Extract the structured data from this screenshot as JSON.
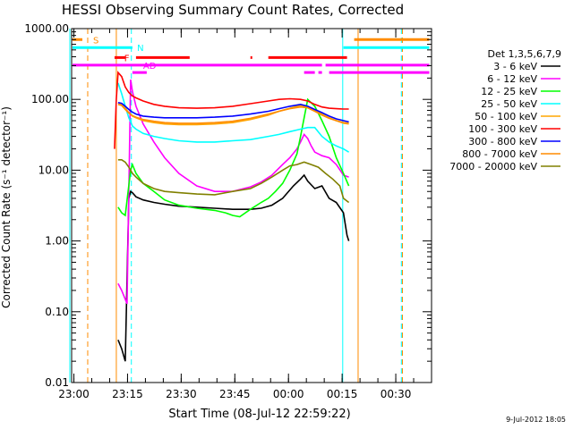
{
  "chart_data": {
    "type": "line",
    "title": "HESSI Observing Summary Count Rates, Corrected",
    "xlabel": "Start Time (08-Jul-12 22:59:22)",
    "ylabel": "Corrected Count Rate (s⁻¹ detector⁻¹)",
    "y_scale": "log",
    "ylim": [
      0.01,
      1000
    ],
    "xlim": [
      "22:59:22",
      "00:40:00"
    ],
    "y_ticks": [
      "1000.00",
      "100.00",
      "10.00",
      "1.00",
      "0.10",
      "0.01"
    ],
    "x_ticks": [
      "23:00",
      "23:15",
      "23:30",
      "23:45",
      "00:00",
      "00:15",
      "00:30"
    ],
    "legend_title": "Det 1,3,5,6,7,9",
    "legend_position": "right",
    "series": [
      {
        "name": "3 - 6 keV",
        "color": "#000000",
        "x": [
          13.0,
          14.0,
          15.0,
          16.0,
          16.5,
          17.0,
          18.0,
          20.0,
          23.0,
          26.0,
          30.0,
          35.0,
          40.0,
          45.0,
          50.0,
          53.0,
          56.0,
          59.0,
          62.0,
          64.0,
          65.0,
          66.0,
          68.0,
          70.0,
          72.0,
          74.0,
          76.0,
          77.0,
          77.5
        ],
        "y": [
          0.04,
          0.03,
          0.02,
          4.0,
          5.0,
          4.8,
          4.2,
          3.8,
          3.5,
          3.3,
          3.1,
          3.0,
          2.9,
          2.8,
          2.8,
          2.9,
          3.2,
          4.0,
          6.0,
          7.5,
          8.5,
          7.0,
          5.5,
          6.0,
          4.0,
          3.5,
          2.5,
          1.2,
          1.0
        ]
      },
      {
        "name": "6 - 12 keV",
        "color": "#ff00ff",
        "x": [
          13.0,
          14.0,
          15.5,
          16.5,
          17.0,
          18.0,
          20.0,
          23.0,
          26.0,
          30.0,
          35.0,
          40.0,
          45.0,
          50.0,
          53.0,
          56.0,
          59.0,
          61.0,
          63.0,
          64.0,
          65.0,
          66.0,
          67.0,
          68.0,
          70.0,
          72.0,
          74.0,
          76.0,
          77.5
        ],
        "y": [
          0.25,
          0.2,
          0.13,
          190,
          130,
          80,
          45,
          25,
          15,
          9.0,
          6.0,
          5.0,
          5.0,
          5.8,
          6.8,
          8.5,
          12,
          15,
          20,
          25,
          32,
          28,
          22,
          18,
          16,
          15,
          12,
          8.5,
          8.0
        ]
      },
      {
        "name": "12 - 25 keV",
        "color": "#00ff00",
        "x": [
          13.0,
          14.0,
          15.0,
          16.5,
          17.0,
          18.0,
          20.0,
          23.0,
          26.0,
          30.0,
          35.0,
          40.0,
          43.0,
          45.0,
          47.0,
          50.0,
          53.0,
          55.0,
          57.0,
          59.0,
          61.0,
          63.0,
          64.0,
          65.0,
          66.0,
          68.0,
          70.0,
          72.0,
          74.0,
          76.0,
          77.5
        ],
        "y": [
          3.0,
          2.5,
          2.3,
          10,
          12,
          9.0,
          6.5,
          5.0,
          3.8,
          3.2,
          2.9,
          2.7,
          2.5,
          2.3,
          2.2,
          2.8,
          3.5,
          4.0,
          5.0,
          6.5,
          10,
          17,
          30,
          55,
          100,
          80,
          50,
          30,
          15,
          9.0,
          6.0
        ]
      },
      {
        "name": "25 - 50 keV",
        "color": "#00ffff",
        "x": [
          13.0,
          14.0,
          15.0,
          16.0,
          17.0,
          18.0,
          20.0,
          23.0,
          26.0,
          30.0,
          35.0,
          40.0,
          45.0,
          50.0,
          55.0,
          58.0,
          61.0,
          64.0,
          66.0,
          68.0,
          70.0,
          72.0,
          74.0,
          76.0,
          77.5
        ],
        "y": [
          170,
          120,
          80,
          55,
          42,
          38,
          33,
          30,
          28,
          26,
          25,
          25,
          26,
          27,
          30,
          32,
          35,
          38,
          40,
          40,
          30,
          25,
          22,
          20,
          18
        ]
      },
      {
        "name": "50 - 100 keV",
        "color": "#ffa500",
        "x": [
          13.0,
          14.0,
          15.0,
          16.0,
          17.0,
          18.0,
          20.0,
          23.0,
          26.0,
          30.0,
          35.0,
          40.0,
          45.0,
          50.0,
          55.0,
          58.0,
          61.0,
          64.0,
          66.0,
          68.0,
          70.0,
          72.0,
          74.0,
          76.0,
          77.5
        ],
        "y": [
          90,
          85,
          75,
          65,
          58,
          55,
          50,
          47,
          45,
          44,
          44,
          45,
          47,
          52,
          60,
          68,
          75,
          82,
          78,
          70,
          62,
          55,
          50,
          46,
          45
        ]
      },
      {
        "name": "100 - 300 keV",
        "color": "#ff0000",
        "x": [
          12.0,
          12.5,
          13.0,
          14.0,
          15.0,
          16.0,
          17.0,
          18.0,
          20.0,
          23.0,
          26.0,
          30.0,
          35.0,
          40.0,
          45.0,
          50.0,
          55.0,
          58.0,
          61.0,
          64.0,
          66.0,
          68.0,
          70.0,
          72.0,
          74.0,
          76.0,
          77.5
        ],
        "y": [
          20,
          100,
          240,
          210,
          150,
          125,
          112,
          105,
          95,
          85,
          80,
          76,
          75,
          76,
          80,
          87,
          95,
          100,
          102,
          100,
          95,
          85,
          78,
          75,
          74,
          73,
          73
        ]
      },
      {
        "name": "300 - 800 keV",
        "color": "#0000ff",
        "x": [
          13.0,
          14.0,
          15.0,
          16.0,
          17.0,
          18.0,
          20.0,
          23.0,
          26.0,
          30.0,
          35.0,
          40.0,
          45.0,
          50.0,
          55.0,
          58.0,
          61.0,
          64.0,
          66.0,
          68.0,
          70.0,
          72.0,
          74.0,
          76.0,
          77.5
        ],
        "y": [
          90,
          88,
          80,
          72,
          66,
          62,
          58,
          56,
          55,
          55,
          55,
          56,
          58,
          62,
          68,
          74,
          80,
          85,
          80,
          72,
          65,
          58,
          53,
          50,
          48
        ]
      },
      {
        "name": "800 - 7000 keV",
        "color": "#ff8c00",
        "x": [
          13.0,
          14.0,
          15.0,
          16.0,
          17.0,
          18.0,
          20.0,
          23.0,
          26.0,
          30.0,
          35.0,
          40.0,
          45.0,
          50.0,
          55.0,
          58.0,
          61.0,
          64.0,
          66.0,
          68.0,
          70.0,
          72.0,
          74.0,
          76.0,
          77.5
        ],
        "y": [
          85,
          82,
          72,
          64,
          59,
          56,
          52,
          49,
          47,
          46,
          46,
          47,
          49,
          54,
          62,
          68,
          74,
          78,
          76,
          68,
          60,
          54,
          50,
          47,
          46
        ]
      },
      {
        "name": "7000 - 20000 keV",
        "color": "#808000",
        "x": [
          13.0,
          14.0,
          15.0,
          16.0,
          17.0,
          18.0,
          20.0,
          23.0,
          26.0,
          30.0,
          35.0,
          40.0,
          45.0,
          50.0,
          53.0,
          56.0,
          59.0,
          61.0,
          63.0,
          65.0,
          67.0,
          69.0,
          71.0,
          73.0,
          75.0,
          76.0,
          77.5
        ],
        "y": [
          14,
          14,
          13,
          11,
          9.0,
          8.0,
          6.5,
          5.5,
          5.0,
          4.8,
          4.6,
          4.5,
          5.0,
          5.5,
          6.5,
          8.0,
          10,
          11.5,
          12,
          13,
          12,
          11,
          9.0,
          7.5,
          6.0,
          4.0,
          3.5
        ]
      }
    ],
    "annotations": [
      {
        "label": "S",
        "color": "#ff8c00",
        "y": 700
      },
      {
        "label": "N",
        "color": "#00ffff",
        "y": 540
      },
      {
        "label": "F",
        "color": "#ff0000",
        "y": 390
      },
      {
        "label": "AD",
        "color": "#ff00ff",
        "y": 305
      }
    ],
    "state_bars": [
      {
        "flag": "S",
        "color": "#ff8c00",
        "y": 700,
        "segments": [
          [
            -2,
            3
          ],
          [
            79,
            100
          ]
        ]
      },
      {
        "flag": "N",
        "color": "#00ffff",
        "y": 540,
        "segments": [
          [
            -2,
            17
          ],
          [
            76,
            100
          ]
        ]
      },
      {
        "flag": "F",
        "color": "#ff0000",
        "y": 390,
        "segments": [
          [
            12,
            15
          ],
          [
            18,
            33
          ],
          [
            50,
            50.5
          ],
          [
            55,
            77
          ]
        ]
      },
      {
        "flag": "AD",
        "color": "#ff00ff",
        "y": 305,
        "segments": [
          [
            -2,
            70
          ],
          [
            71,
            100
          ]
        ]
      },
      {
        "flag": "AD",
        "color": "#ff00ff",
        "y": 240,
        "segments": [
          [
            17,
            21
          ],
          [
            65,
            68
          ],
          [
            69,
            70
          ],
          [
            72,
            100
          ]
        ]
      }
    ],
    "vertical_markers": [
      {
        "x": -0.5,
        "color": "#00ffff",
        "style": "solid"
      },
      {
        "x": 4.5,
        "color": "#ff8c00",
        "style": "dashed"
      },
      {
        "x": 12.5,
        "color": "#ff8c00",
        "style": "solid"
      },
      {
        "x": 16.7,
        "color": "#00ffff",
        "style": "dashed"
      },
      {
        "x": 75.8,
        "color": "#00ffff",
        "style": "solid"
      },
      {
        "x": 80.1,
        "color": "#ff8c00",
        "style": "solid"
      },
      {
        "x": 92.2,
        "color": "#00ffff",
        "style": "dashed"
      },
      {
        "x": 92.5,
        "color": "#ff8c00",
        "style": "dashed"
      }
    ],
    "grid": false
  },
  "footer": {
    "timestamp": "9-Jul-2012 18:05"
  }
}
